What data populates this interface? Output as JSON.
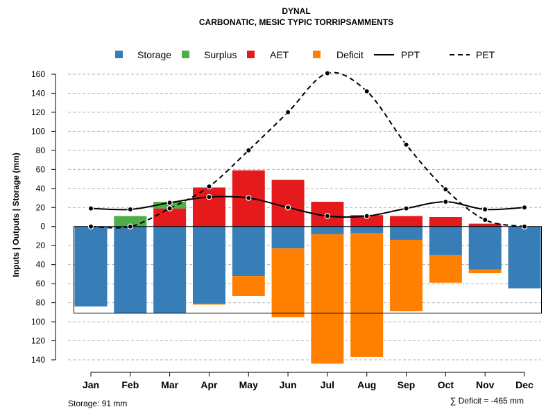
{
  "chart_data": {
    "type": "bar",
    "title": "DYNAL",
    "subtitle": "CARBONATIC, MESIC TYPIC TORRIPSAMMENTS",
    "ylabel": "Inputs | Outputs | Storage    (mm)",
    "categories": [
      "Jan",
      "Feb",
      "Mar",
      "Apr",
      "May",
      "Jun",
      "Jul",
      "Aug",
      "Sep",
      "Oct",
      "Nov",
      "Dec"
    ],
    "ylim": [
      -140,
      160
    ],
    "yticks": [
      160,
      140,
      120,
      100,
      80,
      60,
      40,
      20,
      0,
      -20,
      -40,
      -60,
      -80,
      -100,
      -120,
      -140
    ],
    "ytick_labels": [
      "160",
      "140",
      "120",
      "100",
      "80",
      "60",
      "40",
      "20",
      "0",
      "20",
      "40",
      "60",
      "80",
      "100",
      "120",
      "140"
    ],
    "grid": true,
    "legend_position": "top",
    "legend": [
      {
        "name": "Storage",
        "kind": "box",
        "color": "#377eb8"
      },
      {
        "name": "Surplus",
        "kind": "box",
        "color": "#4daf4a"
      },
      {
        "name": "AET",
        "kind": "box",
        "color": "#e41a1c"
      },
      {
        "name": "Deficit",
        "kind": "box",
        "color": "#ff7f00"
      },
      {
        "name": "PPT",
        "kind": "solid",
        "color": "#000000"
      },
      {
        "name": "PET",
        "kind": "dashed",
        "color": "#000000"
      }
    ],
    "series": [
      {
        "name": "AET",
        "color": "#e41a1c",
        "values": [
          0,
          0,
          19,
          41,
          59,
          49,
          26,
          12,
          11,
          10,
          3,
          0
        ]
      },
      {
        "name": "Surplus",
        "color": "#4daf4a",
        "values": [
          0,
          11,
          7,
          0,
          0,
          0,
          0,
          0,
          0,
          0,
          0,
          0
        ]
      },
      {
        "name": "Storage",
        "color": "#377eb8",
        "values": [
          84,
          91,
          91,
          81,
          52,
          23,
          8,
          7,
          14,
          30,
          45,
          65
        ]
      },
      {
        "name": "Deficit",
        "color": "#ff7f00",
        "values": [
          0,
          0,
          0,
          1,
          21,
          72,
          136,
          130,
          75,
          29,
          4,
          0
        ]
      },
      {
        "name": "PPT",
        "color": "#000000",
        "values": [
          19,
          18,
          25,
          31,
          30,
          20,
          11,
          11,
          19,
          26,
          18,
          20
        ]
      },
      {
        "name": "PET",
        "color": "#000000",
        "values": [
          0,
          0,
          19,
          42,
          80,
          120,
          161,
          142,
          86,
          39,
          7,
          0
        ]
      }
    ],
    "storage_capacity": 91,
    "footnotes": {
      "storage": "Storage: 91 mm",
      "deficit": "∑ Deficit = -465 mm"
    }
  }
}
